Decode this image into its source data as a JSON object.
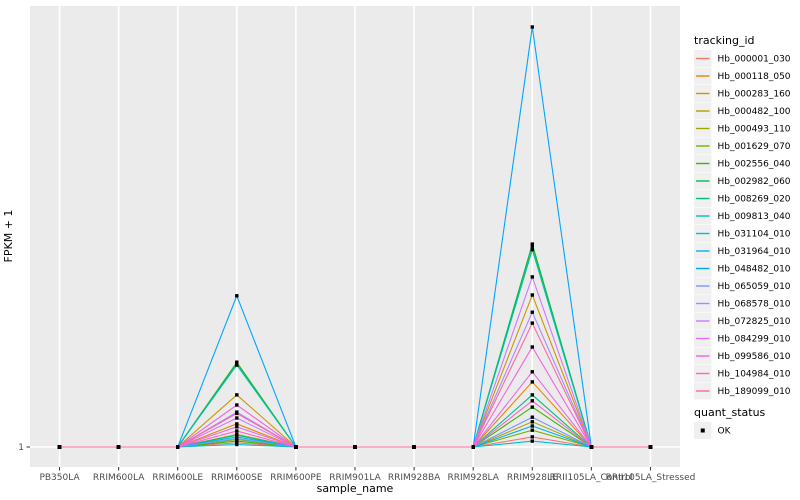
{
  "figure": {
    "background": "#FFFFFF",
    "panel_background": "#EBEBEB",
    "gridline_color": "#FFFFFF",
    "tick_label_color": "#4D4D4D",
    "title_color": "#000000",
    "marker_color": "#000000"
  },
  "chart_data": {
    "type": "line",
    "title": "",
    "xlabel": "sample_name",
    "ylabel": "FPKM + 1",
    "x_tick_labels": [
      "PB350LA",
      "RRIM600LA",
      "RRIM600LE",
      "RRIM600SE",
      "RRIM600PE",
      "RRIM901LA",
      "RRIM928BA",
      "RRIM928LA",
      "RRIM928LE",
      "RRII105LA_Control",
      "RRII105LA_Stressed"
    ],
    "y_tick_labels": [
      "1"
    ],
    "categories": [
      "PB350LA",
      "RRIM600LA",
      "RRIM600LE",
      "RRIM600SE",
      "RRIM600PE",
      "RRIM901LA",
      "RRIM928BA",
      "RRIM928LA",
      "RRIM928LE",
      "RRII105LA_Control",
      "RRII105LA_Stressed"
    ],
    "values_scale": "relative peak height: 0 = baseline (FPKM+1 = 1), 1 = tallest visible peak",
    "marker": "black-square (quant_status OK) at every data point",
    "series": [
      {
        "name": "Hb_000001_030",
        "color": "#F8766D",
        "values": [
          0,
          0,
          0,
          0.01,
          0,
          0,
          0,
          0,
          0.024,
          0,
          0
        ]
      },
      {
        "name": "Hb_000118_050",
        "color": "#E58700",
        "values": [
          0,
          0,
          0,
          0.055,
          0,
          0,
          0,
          0,
          0.155,
          0,
          0
        ]
      },
      {
        "name": "Hb_000283_160",
        "color": "#C99800",
        "values": [
          0,
          0,
          0,
          0.124,
          0,
          0,
          0,
          0,
          0.362,
          0,
          0
        ]
      },
      {
        "name": "Hb_000482_100",
        "color": "#B2A100",
        "values": [
          0,
          0,
          0,
          0.03,
          0,
          0,
          0,
          0,
          0.06,
          0,
          0
        ]
      },
      {
        "name": "Hb_000493_110",
        "color": "#9DA700",
        "values": [
          0,
          0,
          0,
          0.202,
          0,
          0,
          0,
          0,
          0.478,
          0,
          0
        ]
      },
      {
        "name": "Hb_001629_070",
        "color": "#76B000",
        "values": [
          0,
          0,
          0,
          0.018,
          0,
          0,
          0,
          0,
          0.04,
          0,
          0
        ]
      },
      {
        "name": "Hb_002556_040",
        "color": "#3DB700",
        "values": [
          0,
          0,
          0,
          0.014,
          0,
          0,
          0,
          0,
          0.095,
          0,
          0
        ]
      },
      {
        "name": "Hb_002982_060",
        "color": "#00BC51",
        "values": [
          0,
          0,
          0,
          0.2,
          0,
          0,
          0,
          0,
          0.483,
          0,
          0
        ]
      },
      {
        "name": "Hb_008269_020",
        "color": "#00C087",
        "values": [
          0,
          0,
          0,
          0.028,
          0,
          0,
          0,
          0,
          0.124,
          0,
          0
        ]
      },
      {
        "name": "Hb_009813_040",
        "color": "#00C0B2",
        "values": [
          0,
          0,
          0,
          0.195,
          0,
          0,
          0,
          0,
          0.47,
          0,
          0
        ]
      },
      {
        "name": "Hb_031104_010",
        "color": "#00BCD6",
        "values": [
          0,
          0,
          0,
          0.006,
          0,
          0,
          0,
          0,
          0.014,
          0,
          0
        ]
      },
      {
        "name": "Hb_031964_010",
        "color": "#00B3F2",
        "values": [
          0,
          0,
          0,
          0.024,
          0,
          0,
          0,
          0,
          0.05,
          0,
          0
        ]
      },
      {
        "name": "Hb_048482_010",
        "color": "#00A5FF",
        "values": [
          0,
          0,
          0,
          0.36,
          0,
          0,
          0,
          0,
          1.0,
          0,
          0
        ]
      },
      {
        "name": "Hb_065059_010",
        "color": "#7997FF",
        "values": [
          0,
          0,
          0,
          0.02,
          0,
          0,
          0,
          0,
          0.071,
          0,
          0
        ]
      },
      {
        "name": "Hb_068578_010",
        "color": "#AC88FF",
        "values": [
          0,
          0,
          0,
          0.083,
          0,
          0,
          0,
          0,
          0.321,
          0,
          0
        ]
      },
      {
        "name": "Hb_072825_010",
        "color": "#CF78FF",
        "values": [
          0,
          0,
          0,
          0.069,
          0,
          0,
          0,
          0,
          0.405,
          0,
          0
        ]
      },
      {
        "name": "Hb_084299_010",
        "color": "#E76BF3",
        "values": [
          0,
          0,
          0,
          0.048,
          0,
          0,
          0,
          0,
          0.179,
          0,
          0
        ]
      },
      {
        "name": "Hb_099586_010",
        "color": "#F562DD",
        "values": [
          0,
          0,
          0,
          0.1,
          0,
          0,
          0,
          0,
          0.238,
          0,
          0
        ]
      },
      {
        "name": "Hb_104984_010",
        "color": "#FF61C7",
        "values": [
          0,
          0,
          0,
          0.038,
          0,
          0,
          0,
          0,
          0.11,
          0,
          0
        ]
      },
      {
        "name": "Hb_189099_010",
        "color": "#FF689E",
        "values": [
          0,
          0,
          0,
          0.08,
          0,
          0,
          0,
          0,
          0.295,
          0,
          0
        ]
      }
    ]
  },
  "legend": {
    "tracking": {
      "title": "tracking_id"
    },
    "quant": {
      "title": "quant_status",
      "items": [
        {
          "label": "OK",
          "marker": "black-square"
        }
      ]
    }
  }
}
